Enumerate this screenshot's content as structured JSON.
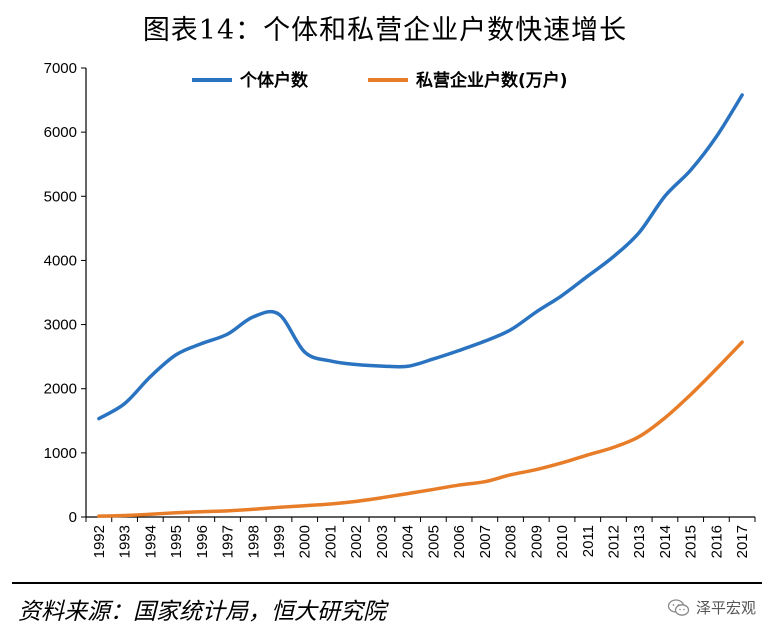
{
  "title": "图表14：个体和私营企业户数快速增长",
  "source": "资料来源：国家统计局，恒大研究院",
  "watermark": "泽平宏观",
  "chart_data": {
    "type": "line",
    "x": [
      "1992",
      "1993",
      "1994",
      "1995",
      "1996",
      "1997",
      "1998",
      "1999",
      "2000",
      "2001",
      "2002",
      "2003",
      "2004",
      "2005",
      "2006",
      "2007",
      "2008",
      "2009",
      "2010",
      "2011",
      "2012",
      "2013",
      "2014",
      "2015",
      "2016",
      "2017"
    ],
    "ylim": [
      0,
      7000
    ],
    "yticks": [
      0,
      1000,
      2000,
      3000,
      4000,
      5000,
      6000,
      7000
    ],
    "series": [
      {
        "name": "个体户数",
        "color": "#2a73c0",
        "values": [
          1534,
          1767,
          2187,
          2529,
          2704,
          2851,
          3120,
          3160,
          2571,
          2433,
          2377,
          2353,
          2350,
          2464,
          2596,
          2741,
          2917,
          3197,
          3453,
          3756,
          4059,
          4436,
          5003,
          5408,
          5930,
          6579
        ]
      },
      {
        "name": "私营企业户数(万户)",
        "color": "#e87d29",
        "values": [
          14,
          24,
          43,
          66,
          82,
          96,
          120,
          151,
          176,
          203,
          244,
          301,
          365,
          430,
          498,
          551,
          657,
          740,
          845,
          968,
          1086,
          1254,
          1546,
          1908,
          2309,
          2726
        ]
      }
    ],
    "legend_position": "top",
    "grid": false
  }
}
